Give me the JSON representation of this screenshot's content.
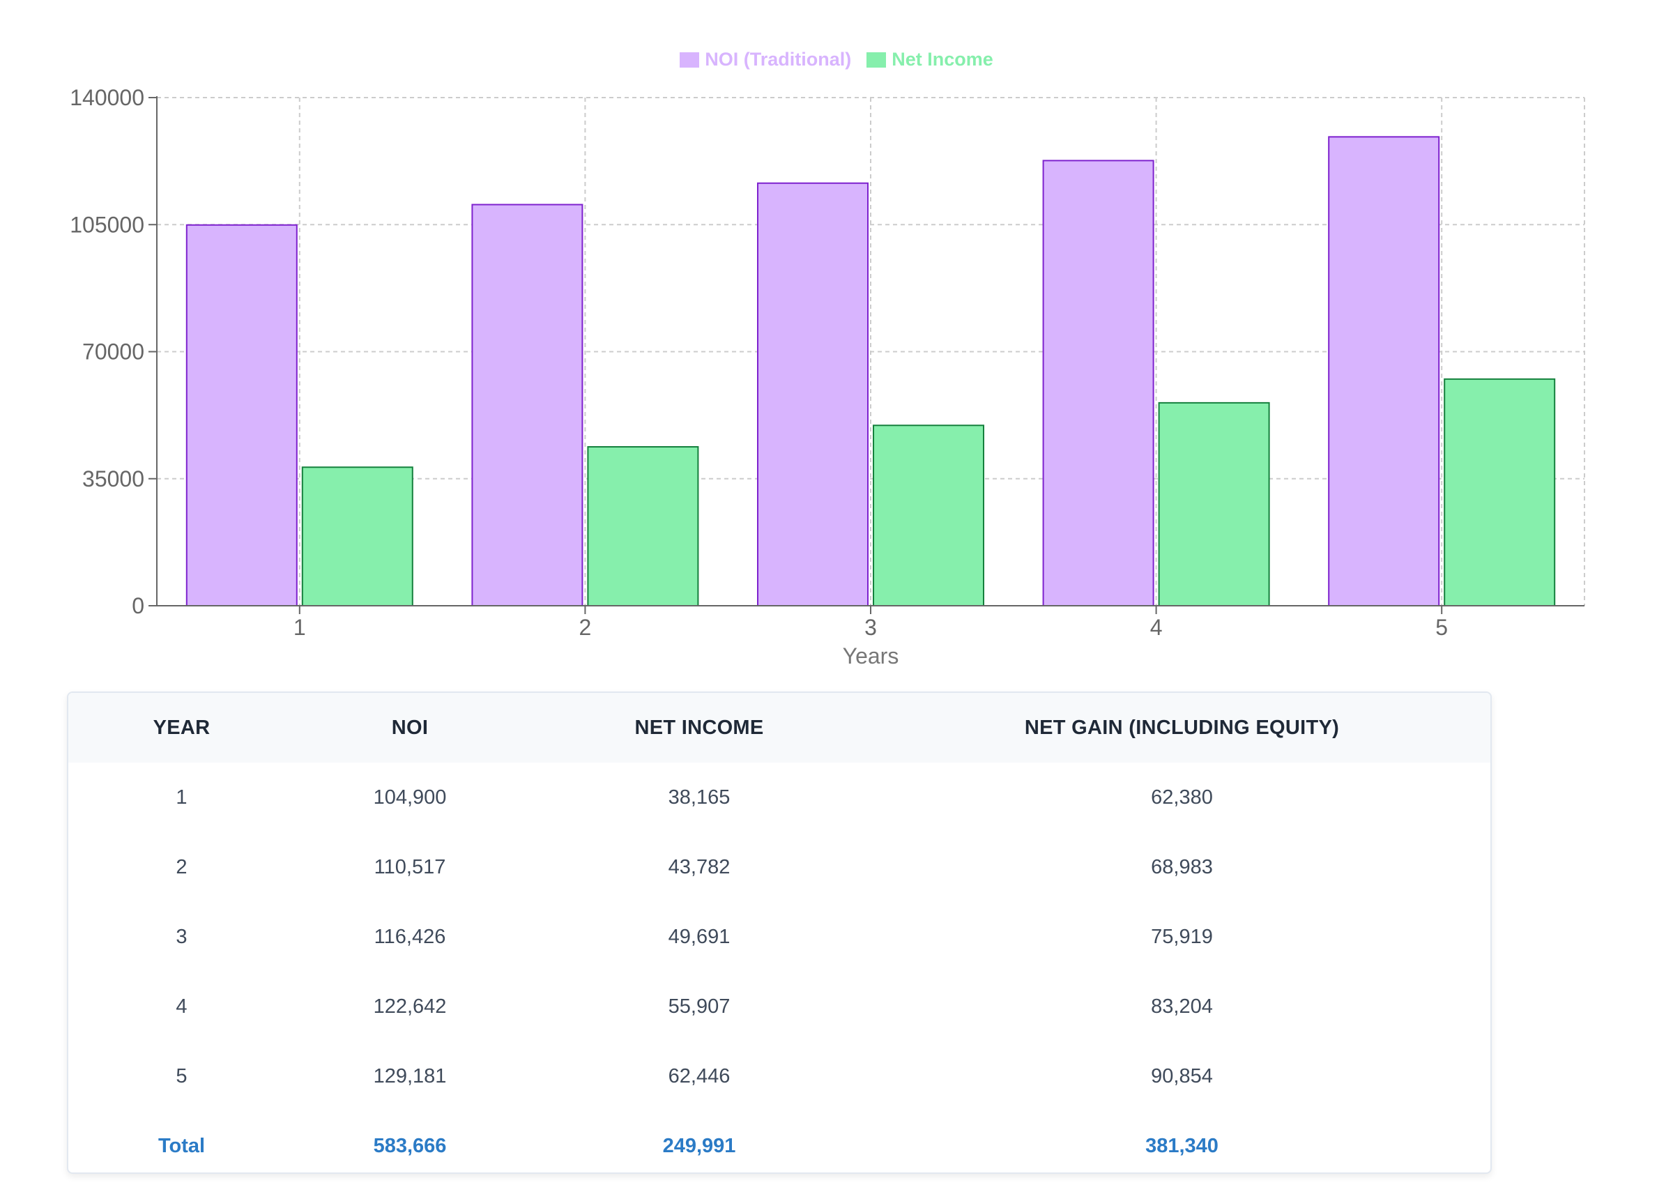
{
  "chart_data": {
    "type": "bar",
    "categories": [
      "1",
      "2",
      "3",
      "4",
      "5"
    ],
    "series": [
      {
        "name": "NOI (Traditional)",
        "values": [
          104900,
          110517,
          116426,
          122642,
          129181
        ],
        "color": "#d8b4fe",
        "stroke": "#7e22ce"
      },
      {
        "name": "Net Income",
        "values": [
          38165,
          43782,
          49691,
          55907,
          62446
        ],
        "color": "#86efac",
        "stroke": "#15803d"
      }
    ],
    "xlabel": "Years",
    "ylabel": "",
    "ylim": [
      0,
      140000
    ],
    "yticks": [
      "0",
      "35000",
      "70000",
      "105000",
      "140000"
    ],
    "grid": true,
    "legend_position": "top-center"
  },
  "legend": {
    "noi_label": "NOI (Traditional)",
    "net_label": "Net Income",
    "noi_color": "#d8b4fe",
    "net_color": "#86efac"
  },
  "table": {
    "headers": {
      "year": "YEAR",
      "noi": "NOI",
      "net_income": "NET INCOME",
      "net_gain": "NET GAIN (INCLUDING EQUITY)"
    },
    "rows": [
      {
        "year": "1",
        "noi": "104,900",
        "net_income": "38,165",
        "net_gain": "62,380"
      },
      {
        "year": "2",
        "noi": "110,517",
        "net_income": "43,782",
        "net_gain": "68,983"
      },
      {
        "year": "3",
        "noi": "116,426",
        "net_income": "49,691",
        "net_gain": "75,919"
      },
      {
        "year": "4",
        "noi": "122,642",
        "net_income": "55,907",
        "net_gain": "83,204"
      },
      {
        "year": "5",
        "noi": "129,181",
        "net_income": "62,446",
        "net_gain": "90,854"
      }
    ],
    "total": {
      "year": "Total",
      "noi": "583,666",
      "net_income": "249,991",
      "net_gain": "381,340"
    }
  }
}
